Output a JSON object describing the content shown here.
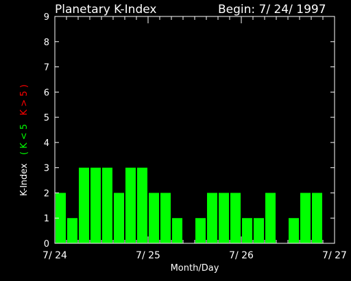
{
  "header": {
    "title": "Planetary K-Index",
    "begin": "Begin: 7/ 24/ 1997"
  },
  "colors": {
    "background": "#000000",
    "axis": "#ffffff",
    "bar_below_5": "#00ff00",
    "bar_above_5": "#ff0000",
    "legend_green": "#00ff00",
    "legend_red": "#ff0000"
  },
  "chart_data": {
    "type": "bar",
    "title": "Planetary K-Index",
    "subtitle": "Begin: 7/ 24/ 1997",
    "xlabel": "Month/Day",
    "ylabel": "K-Index",
    "legend": [
      "( K < 5",
      "K > 5 )"
    ],
    "ylim": [
      0,
      9
    ],
    "yticks": [
      "0",
      "1",
      "2",
      "3",
      "4",
      "5",
      "6",
      "7",
      "8",
      "9"
    ],
    "xticks": [
      "7/ 24",
      "7/ 25",
      "7/ 26",
      "7/ 27"
    ],
    "bars_per_day": 8,
    "values": [
      2,
      1,
      3,
      3,
      3,
      2,
      3,
      3,
      2,
      2,
      1,
      0,
      1,
      2,
      2,
      2,
      1,
      1,
      2,
      0,
      1,
      2,
      2,
      0
    ],
    "grid": false
  }
}
